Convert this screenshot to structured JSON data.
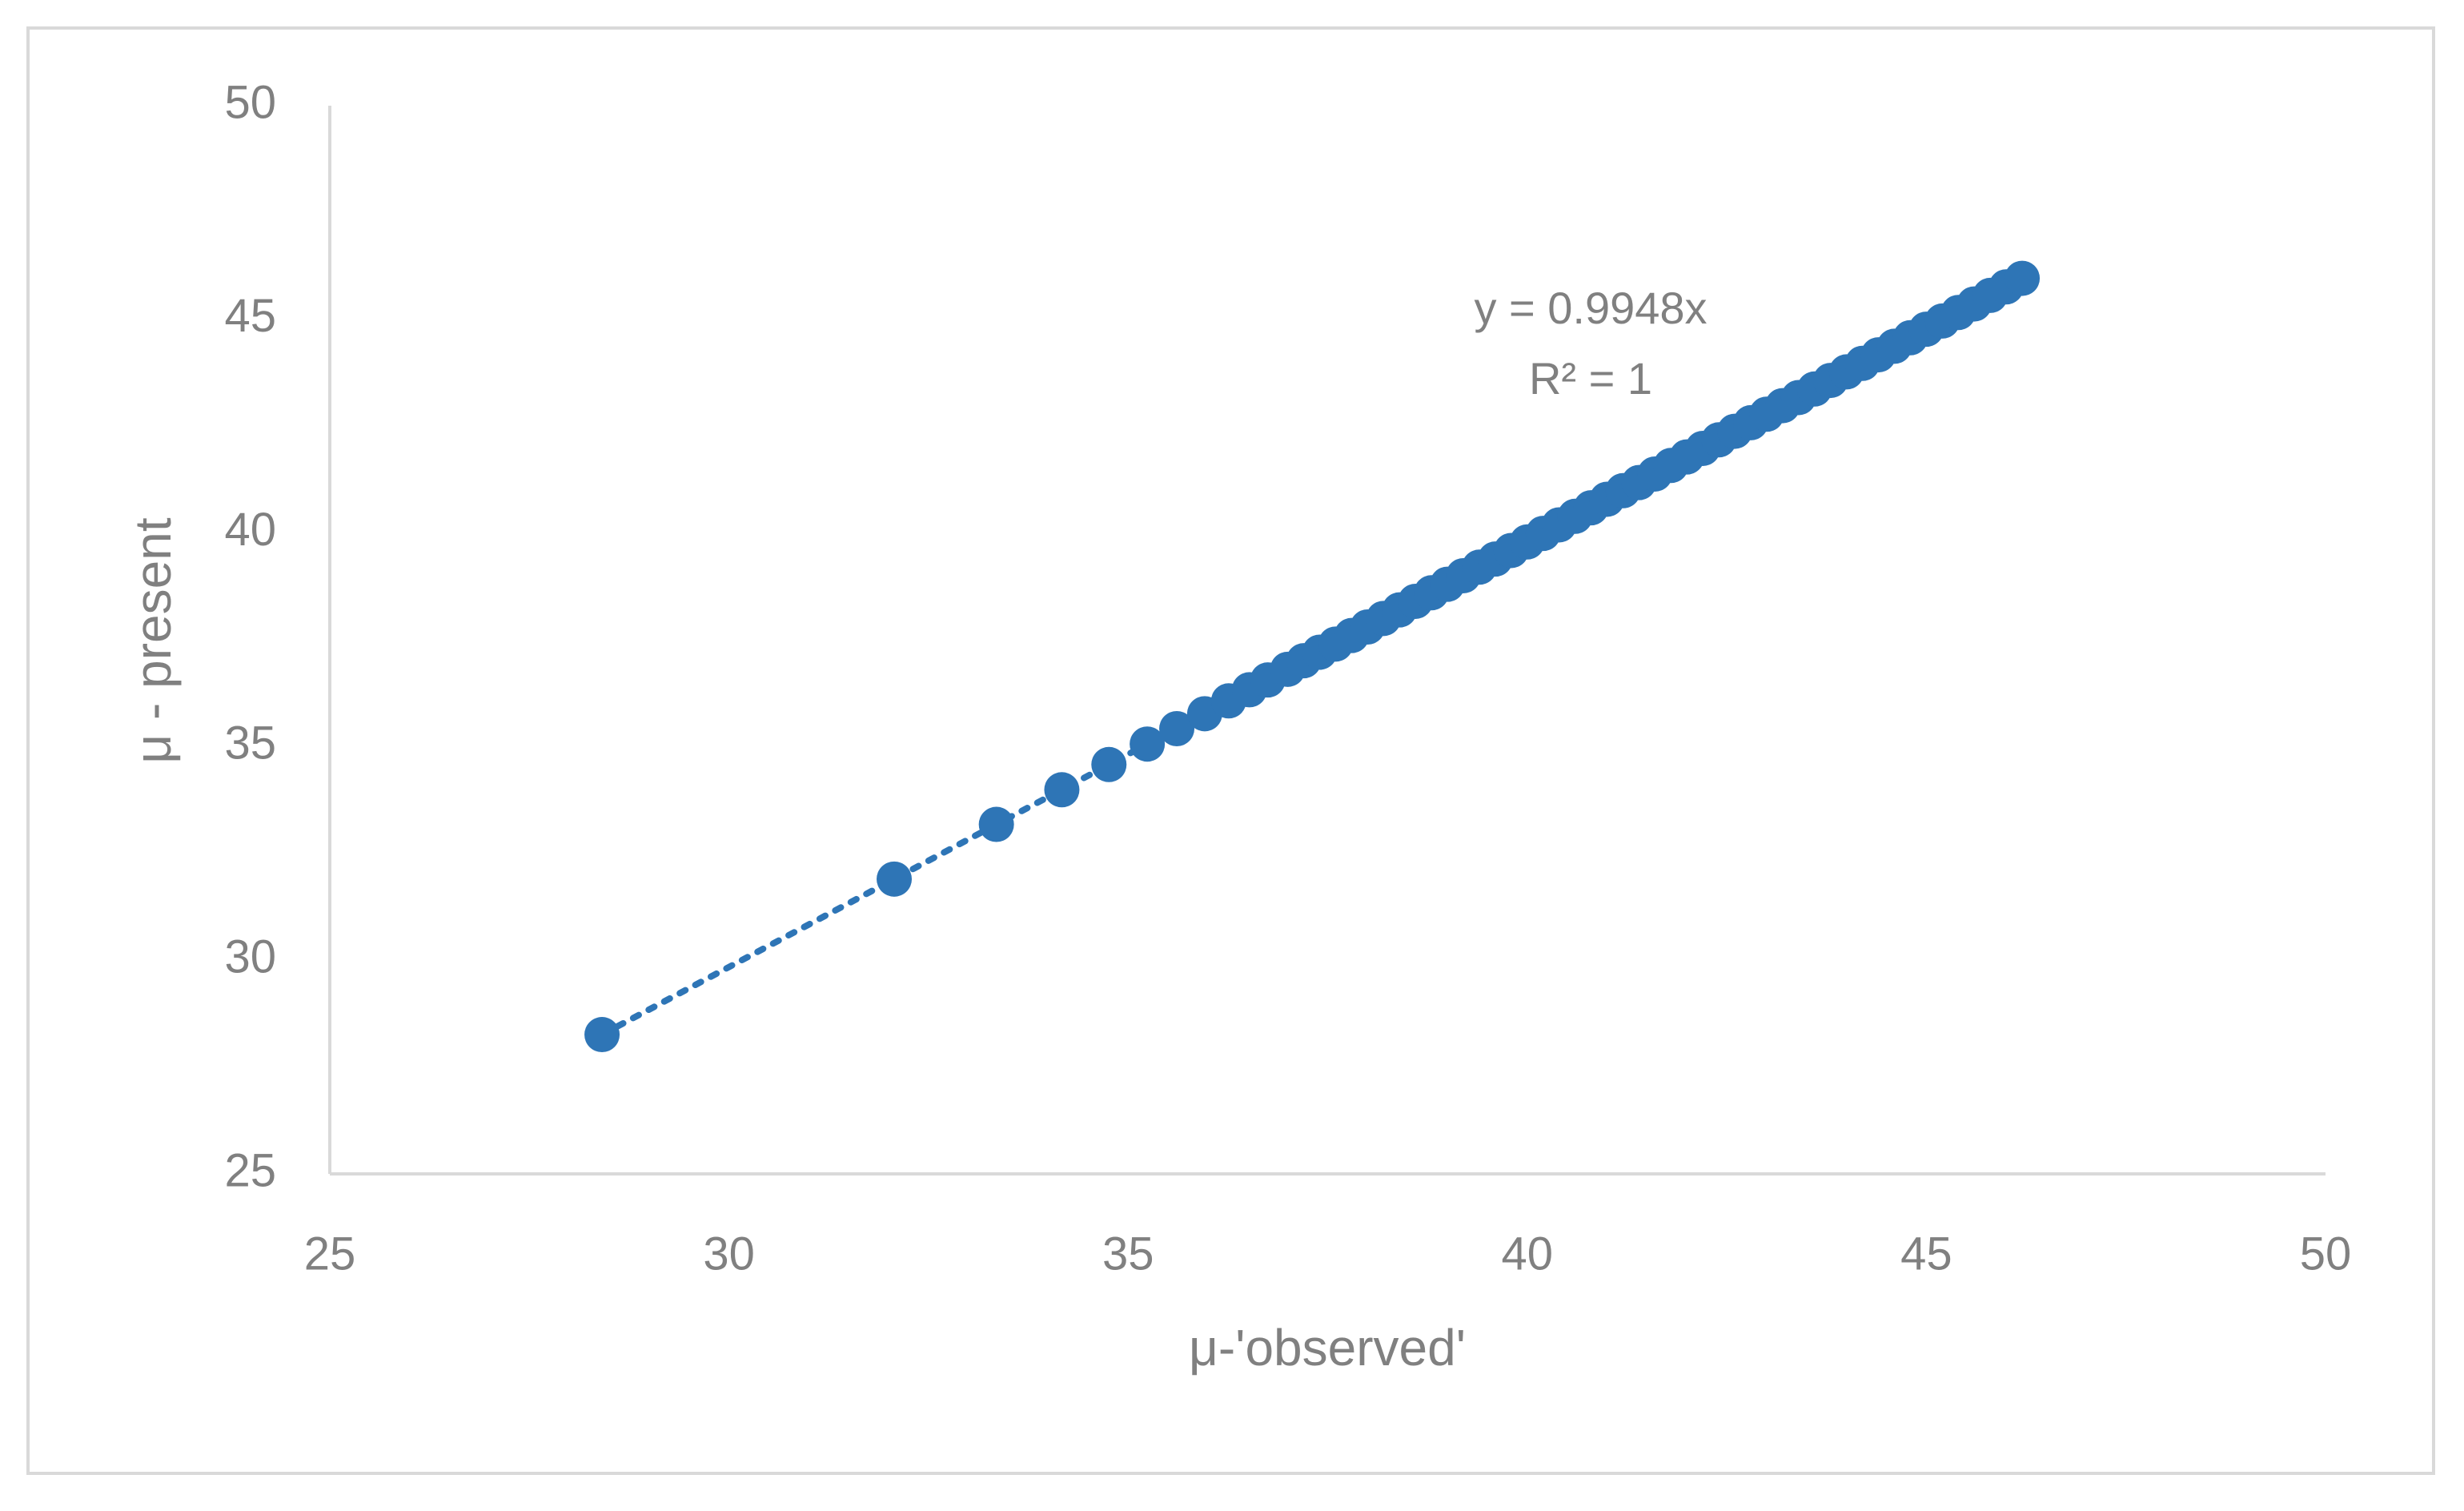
{
  "chart_data": {
    "type": "scatter",
    "x_label": "μ-'observed'",
    "y_label": "μ - present",
    "annotations": [
      "y = 0.9948x",
      "R² = 1"
    ],
    "xlim": [
      25,
      50
    ],
    "xticks": [
      25,
      30,
      35,
      40,
      45,
      50
    ],
    "ylim": [
      25,
      50
    ],
    "yticks": [
      25,
      30,
      35,
      40,
      45,
      50
    ],
    "grid": false,
    "trendline": "dotted",
    "series": [
      {
        "color": "#2e75b6",
        "x": [
          28.41,
          32.07,
          33.35,
          34.17,
          34.76,
          35.24,
          35.61,
          35.96,
          36.26,
          36.52,
          36.75,
          37.0,
          37.2,
          37.4,
          37.6,
          37.8,
          38.0,
          38.2,
          38.4,
          38.6,
          38.8,
          39.0,
          39.2,
          39.4,
          39.6,
          39.8,
          40.0,
          40.2,
          40.4,
          40.6,
          40.8,
          41.0,
          41.2,
          41.4,
          41.6,
          41.8,
          42.0,
          42.2,
          42.4,
          42.6,
          42.8,
          43.0,
          43.2,
          43.4,
          43.6,
          43.8,
          44.0,
          44.2,
          44.4,
          44.6,
          44.8,
          45.0,
          45.2,
          45.4,
          45.6,
          45.8,
          46.0,
          46.2
        ],
        "values": [
          28.26,
          31.9,
          33.18,
          33.99,
          34.58,
          35.06,
          35.42,
          35.77,
          36.07,
          36.33,
          36.56,
          36.81,
          37.01,
          37.21,
          37.4,
          37.6,
          37.8,
          38.0,
          38.2,
          38.4,
          38.6,
          38.8,
          39.0,
          39.2,
          39.39,
          39.59,
          39.79,
          39.99,
          40.19,
          40.39,
          40.59,
          40.79,
          40.99,
          41.18,
          41.38,
          41.58,
          41.78,
          41.98,
          42.18,
          42.38,
          42.58,
          42.78,
          42.98,
          43.17,
          43.37,
          43.57,
          43.77,
          43.97,
          44.17,
          44.37,
          44.57,
          44.77,
          44.96,
          45.16,
          45.36,
          45.56,
          45.76,
          45.96
        ]
      }
    ]
  }
}
